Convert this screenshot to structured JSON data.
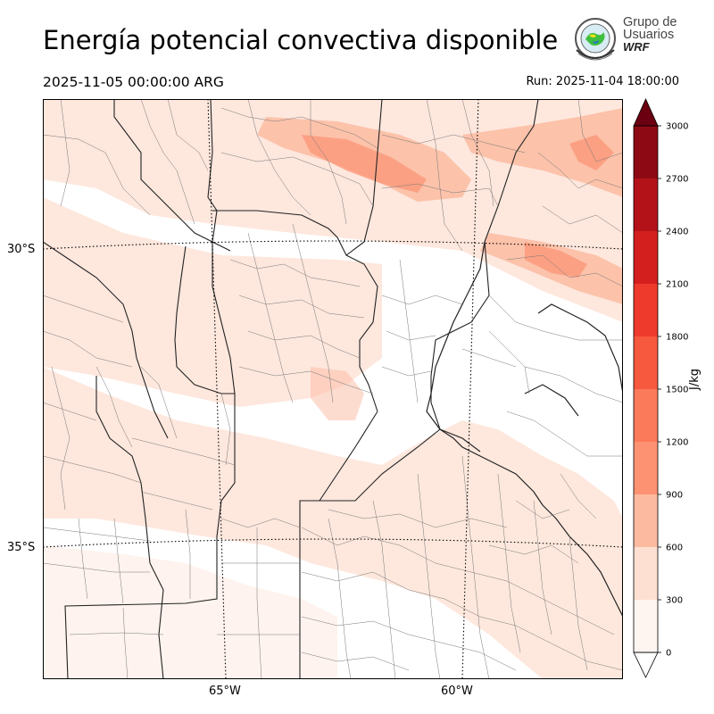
{
  "header": {
    "title": "Energía potencial convectiva disponible",
    "valid_time": "2025-11-05 00:00:00 ARG",
    "run_time": "Run: 2025-11-04 18:00:00"
  },
  "logo": {
    "line1": "Grupo de",
    "line2": "Usuarios",
    "brand": "WRF"
  },
  "map": {
    "lat_labels": [
      "30°S",
      "35°S"
    ],
    "lon_labels": [
      "65°W",
      "60°W"
    ],
    "field": "CAPE"
  },
  "colorbar": {
    "unit": "J/kg",
    "ticks": [
      "0",
      "300",
      "600",
      "900",
      "1200",
      "1500",
      "1800",
      "2100",
      "2400",
      "2700",
      "3000"
    ],
    "colors": [
      "#fff5f0",
      "#fee0d2",
      "#fcbba1",
      "#fc9272",
      "#fb7a5a",
      "#f7593f",
      "#ee3a2c",
      "#d41f1f",
      "#b31219",
      "#8d0a14",
      "#6a0010"
    ],
    "extend": "both"
  }
}
